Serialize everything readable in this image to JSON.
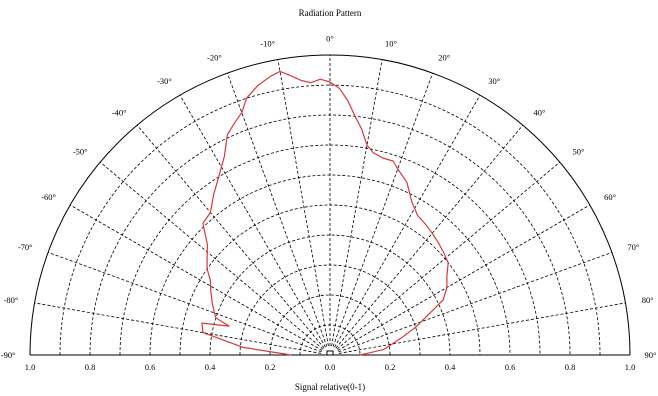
{
  "chart_data": {
    "type": "polar-line",
    "title": "Radiation Pattern",
    "xlabel": "Signal relative(0-1)",
    "r_range": [
      0,
      1
    ],
    "theta_range_deg": [
      -90,
      90
    ],
    "angle_ticks": [
      "-90°",
      "-80°",
      "-70°",
      "-60°",
      "-50°",
      "-40°",
      "-30°",
      "-20°",
      "-10°",
      "0°",
      "10°",
      "20°",
      "30°",
      "40°",
      "50°",
      "60°",
      "70°",
      "80°",
      "90°"
    ],
    "radial_ticks": [
      "1.0",
      "0.8",
      "0.6",
      "0.4",
      "0.2",
      "0.0",
      "0.2",
      "0.4",
      "0.6",
      "0.8",
      "1.0"
    ],
    "grid": true,
    "series": [
      {
        "color": "#d43a3a",
        "theta_deg": [
          -90,
          -85,
          -80,
          -76,
          -74,
          -72,
          -70,
          -66,
          -62,
          -58,
          -55,
          -52,
          -48,
          -44,
          -40,
          -36,
          -32,
          -28,
          -25,
          -22,
          -20,
          -18,
          -15,
          -12,
          -10,
          -8,
          -6,
          -4,
          -2,
          0,
          2,
          4,
          6,
          8,
          10,
          12,
          15,
          18,
          20,
          24,
          28,
          32,
          36,
          40,
          44,
          48,
          52,
          56,
          60,
          64,
          68,
          72,
          76,
          80,
          84,
          88,
          90
        ],
        "r": [
          0.13,
          0.29,
          0.43,
          0.44,
          0.35,
          0.4,
          0.41,
          0.43,
          0.45,
          0.47,
          0.5,
          0.52,
          0.55,
          0.61,
          0.62,
          0.66,
          0.7,
          0.75,
          0.81,
          0.84,
          0.86,
          0.9,
          0.93,
          0.95,
          0.96,
          0.94,
          0.92,
          0.91,
          0.92,
          0.91,
          0.89,
          0.85,
          0.8,
          0.76,
          0.71,
          0.69,
          0.68,
          0.68,
          0.66,
          0.63,
          0.58,
          0.55,
          0.54,
          0.53,
          0.52,
          0.51,
          0.5,
          0.47,
          0.45,
          0.42,
          0.35,
          0.3,
          0.25,
          0.21,
          0.18,
          0.12,
          0.1
        ]
      }
    ]
  }
}
